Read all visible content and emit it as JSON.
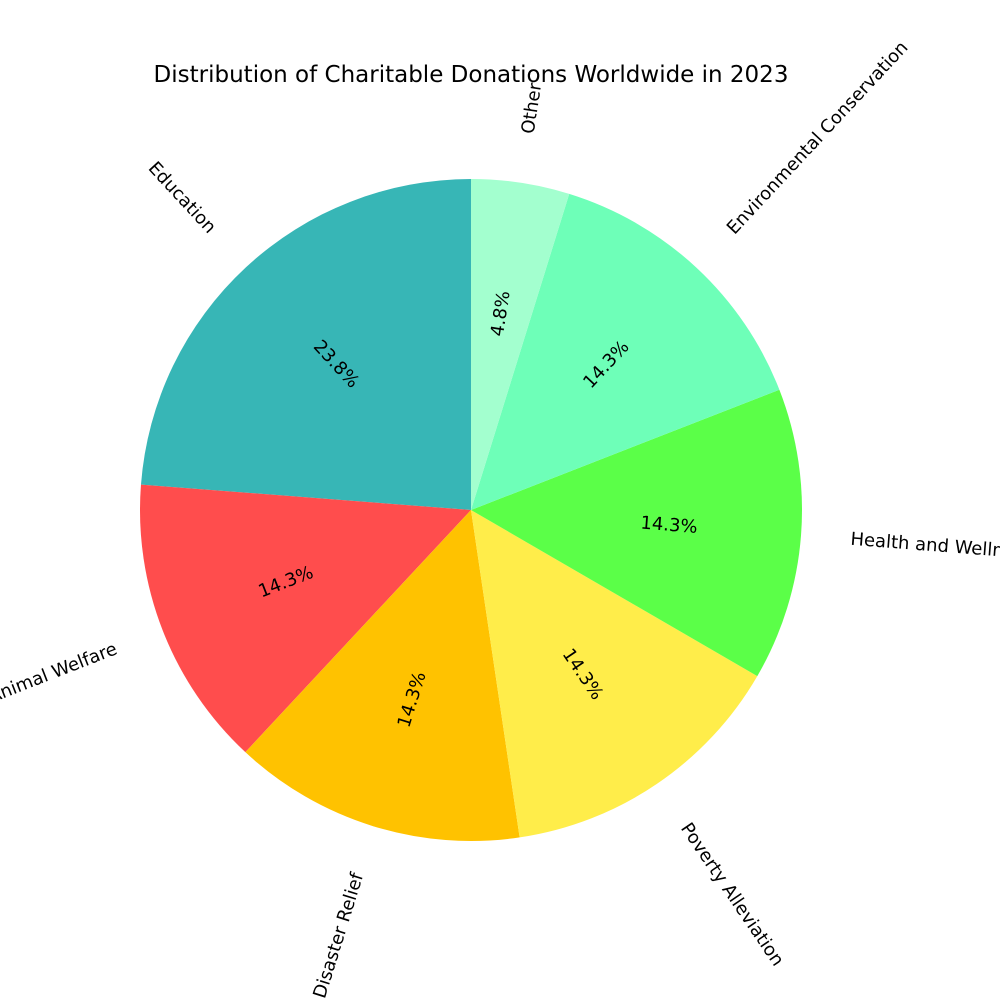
{
  "chart_data": {
    "type": "pie",
    "title": "Distribution of Charitable Donations Worldwide in 2023",
    "start_angle_deg": 90,
    "direction": "counterclockwise",
    "slices": [
      {
        "label": "Education",
        "value": 23.8,
        "pct_label": "23.8%",
        "color": "#37b6b6"
      },
      {
        "label": "Animal Welfare",
        "value": 14.3,
        "pct_label": "14.3%",
        "color": "#ff4d4d"
      },
      {
        "label": "Disaster Relief",
        "value": 14.3,
        "pct_label": "14.3%",
        "color": "#ffc200"
      },
      {
        "label": "Poverty Alleviation",
        "value": 14.3,
        "pct_label": "14.3%",
        "color": "#ffed4a"
      },
      {
        "label": "Health and Wellness",
        "value": 14.3,
        "pct_label": "14.3%",
        "color": "#5bff48"
      },
      {
        "label": "Environmental Conservation",
        "value": 14.3,
        "pct_label": "14.3%",
        "color": "#6effb8"
      },
      {
        "label": "Other",
        "value": 4.8,
        "pct_label": "4.8%",
        "color": "#a3ffcf"
      }
    ]
  }
}
